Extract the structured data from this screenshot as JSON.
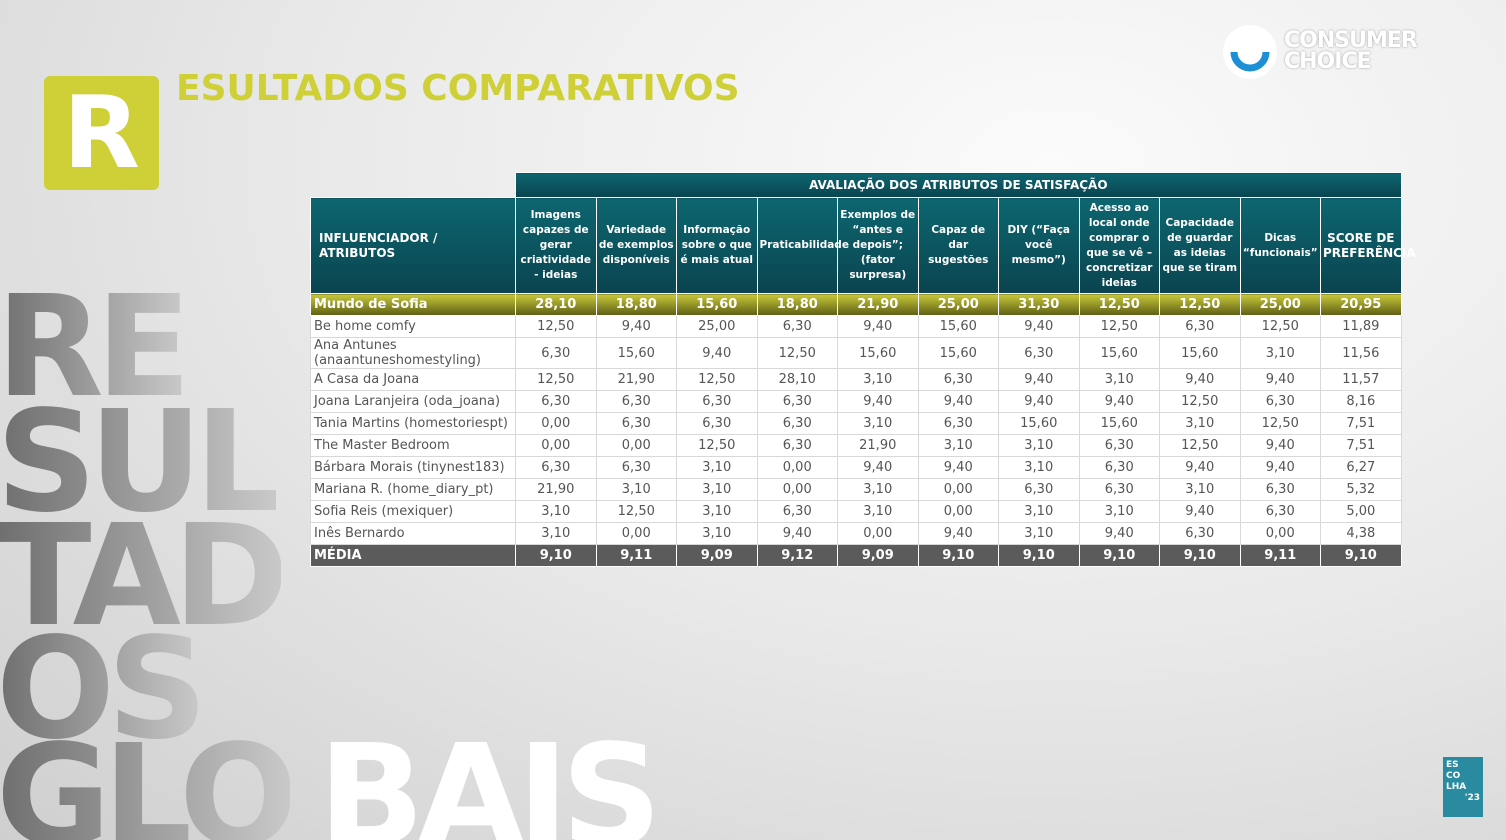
{
  "header": {
    "letter": "R",
    "title": "ESULTADOS COMPARATIVOS"
  },
  "logo": {
    "line1": "CONSUMER",
    "line2": "CHOICE"
  },
  "side_words": [
    "RE",
    "SUL",
    "TAD",
    "OS",
    "GLO",
    "BAIS"
  ],
  "badge": {
    "lines": [
      "ES",
      "CO",
      "LHA"
    ],
    "year": "'23"
  },
  "table": {
    "group_header": "AVALIAÇÃO DOS ATRIBUTOS DE SATISFAÇÃO",
    "columns": [
      "INFLUENCIADOR / ATRIBUTOS",
      "Imagens capazes de gerar criatividade - ideias",
      "Variedade de exemplos disponíveis",
      "Informação sobre o que é mais atual",
      "Praticabilidade",
      "Exemplos de “antes e depois”; (fator surpresa)",
      "Capaz de dar sugestões",
      "DIY (“Faça você mesmo”)",
      "Acesso ao local onde comprar o que se vê – concretizar ideias",
      "Capacidade de guardar as ideias que se tiram",
      "Dicas “funcionais”",
      "SCORE DE PREFERÊNCIA"
    ],
    "rows": [
      {
        "name": "Mundo de Sofia",
        "values": [
          "28,10",
          "18,80",
          "15,60",
          "18,80",
          "21,90",
          "25,00",
          "31,30",
          "12,50",
          "12,50",
          "25,00",
          "20,95"
        ]
      },
      {
        "name": "Be home comfy",
        "values": [
          "12,50",
          "9,40",
          "25,00",
          "6,30",
          "9,40",
          "15,60",
          "9,40",
          "12,50",
          "6,30",
          "12,50",
          "11,89"
        ]
      },
      {
        "name": "Ana Antunes (anaantuneshomestyling)",
        "values": [
          "6,30",
          "15,60",
          "9,40",
          "12,50",
          "15,60",
          "15,60",
          "6,30",
          "15,60",
          "15,60",
          "3,10",
          "11,56"
        ]
      },
      {
        "name": "A Casa da Joana",
        "values": [
          "12,50",
          "21,90",
          "12,50",
          "28,10",
          "3,10",
          "6,30",
          "9,40",
          "3,10",
          "9,40",
          "9,40",
          "11,57"
        ]
      },
      {
        "name": "Joana Laranjeira (oda_joana)",
        "values": [
          "6,30",
          "6,30",
          "6,30",
          "6,30",
          "9,40",
          "9,40",
          "9,40",
          "9,40",
          "12,50",
          "6,30",
          "8,16"
        ]
      },
      {
        "name": "Tania Martins (homestoriespt)",
        "values": [
          "0,00",
          "6,30",
          "6,30",
          "6,30",
          "3,10",
          "6,30",
          "15,60",
          "15,60",
          "3,10",
          "12,50",
          "7,51"
        ]
      },
      {
        "name": "The Master Bedroom",
        "values": [
          "0,00",
          "0,00",
          "12,50",
          "6,30",
          "21,90",
          "3,10",
          "3,10",
          "6,30",
          "12,50",
          "9,40",
          "7,51"
        ]
      },
      {
        "name": "Bárbara Morais (tinynest183)",
        "values": [
          "6,30",
          "6,30",
          "3,10",
          "0,00",
          "9,40",
          "9,40",
          "3,10",
          "6,30",
          "9,40",
          "9,40",
          "6,27"
        ]
      },
      {
        "name": "Mariana R. (home_diary_pt)",
        "values": [
          "21,90",
          "3,10",
          "3,10",
          "0,00",
          "3,10",
          "0,00",
          "6,30",
          "6,30",
          "3,10",
          "6,30",
          "5,32"
        ]
      },
      {
        "name": "Sofia Reis (mexiquer)",
        "values": [
          "3,10",
          "12,50",
          "3,10",
          "6,30",
          "3,10",
          "0,00",
          "3,10",
          "3,10",
          "9,40",
          "6,30",
          "5,00"
        ]
      },
      {
        "name": "Inês Bernardo",
        "values": [
          "3,10",
          "0,00",
          "3,10",
          "9,40",
          "0,00",
          "9,40",
          "3,10",
          "9,40",
          "6,30",
          "0,00",
          "4,38"
        ]
      }
    ],
    "average": {
      "name": "MÉDIA",
      "values": [
        "9,10",
        "9,11",
        "9,09",
        "9,12",
        "9,09",
        "9,10",
        "9,10",
        "9,10",
        "9,10",
        "9,11",
        "9,10"
      ]
    }
  }
}
